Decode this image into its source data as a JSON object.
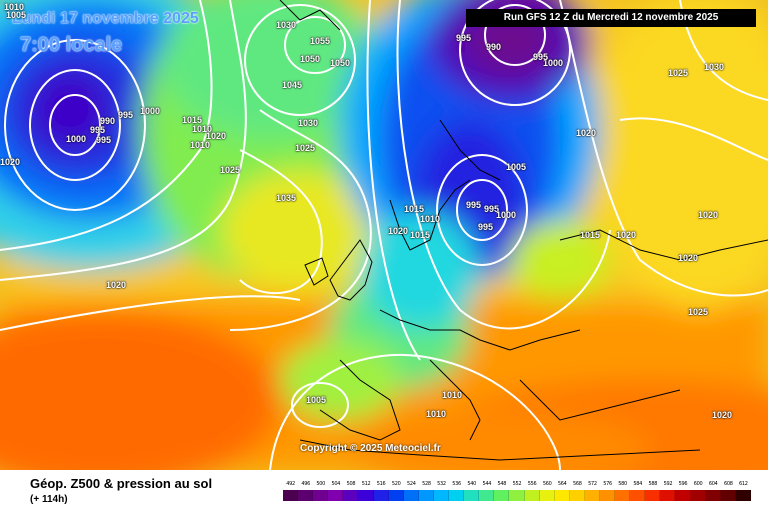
{
  "header": {
    "date": "Lundi 17 novembre 2025",
    "time": "7:00 locale",
    "run": "Run GFS 12 Z du Mercredi 12 novembre 2025"
  },
  "copyright": "Copyright © 2025 Meteociel.fr",
  "footer": {
    "title": "Géop. Z500 & pression au sol",
    "subtitle": "(+ 114h)"
  },
  "scale": {
    "labels": [
      "492",
      "496",
      "500",
      "504",
      "508",
      "512",
      "516",
      "520",
      "524",
      "528",
      "532",
      "536",
      "540",
      "544",
      "548",
      "552",
      "556",
      "560",
      "564",
      "568",
      "572",
      "576",
      "580",
      "584",
      "588",
      "592",
      "596",
      "600",
      "604",
      "608",
      "612"
    ],
    "colors": [
      "#4b0050",
      "#5c0070",
      "#700090",
      "#8000b0",
      "#5c00c0",
      "#3c00d8",
      "#2020e8",
      "#0040f0",
      "#0070f8",
      "#0098ff",
      "#00b8ff",
      "#00d0f0",
      "#20e0c0",
      "#40e890",
      "#60f060",
      "#90f040",
      "#c0f020",
      "#e8f010",
      "#ffe800",
      "#ffd000",
      "#ffb000",
      "#ff9000",
      "#ff7000",
      "#ff5000",
      "#f83000",
      "#e01000",
      "#c00000",
      "#a00000",
      "#800000",
      "#600000",
      "#300000"
    ]
  },
  "isobars": [
    "1005",
    "1010",
    "1030",
    "1055",
    "1050",
    "1050",
    "1045",
    "1030",
    "1025",
    "1035",
    "1015",
    "1010",
    "1025",
    "1000",
    "995",
    "990",
    "995",
    "995",
    "1000",
    "1010",
    "1020",
    "1020",
    "995",
    "990",
    "1000",
    "995",
    "1025",
    "1030",
    "1020",
    "1005",
    "995",
    "995",
    "1000",
    "995",
    "1015",
    "1010",
    "1020",
    "1015",
    "1015",
    "1020",
    "1020",
    "1020",
    "1025",
    "1020",
    "1005",
    "1010",
    "1010",
    "1020"
  ],
  "colors": {
    "banner_bg": "#000000",
    "title_text": "#5aa0ff",
    "isobar": "#ffffff",
    "coast": "#000000"
  }
}
